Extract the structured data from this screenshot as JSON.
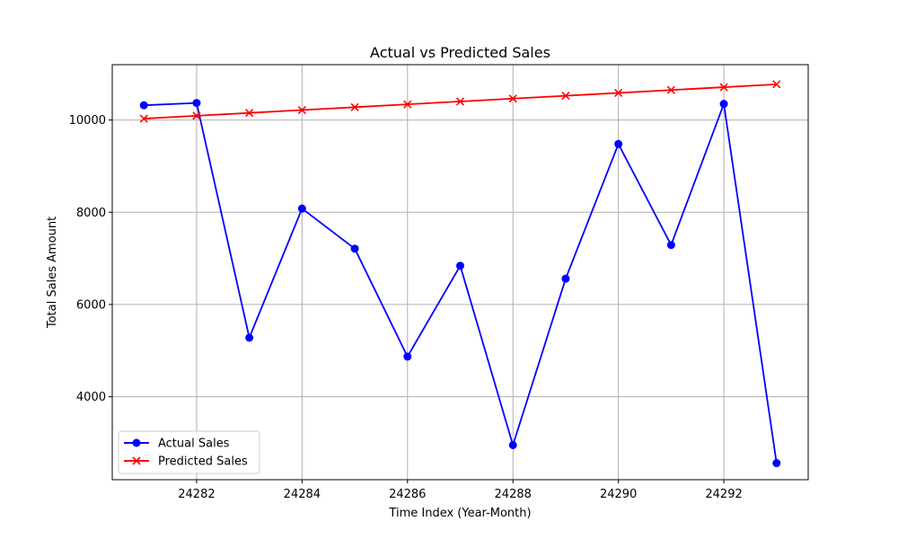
{
  "chart_data": {
    "type": "line",
    "title": "Actual vs Predicted Sales",
    "xlabel": "Time Index (Year-Month)",
    "ylabel": "Total Sales Amount",
    "x": [
      24281,
      24282,
      24283,
      24284,
      24285,
      24286,
      24287,
      24288,
      24289,
      24290,
      24291,
      24292,
      24293
    ],
    "xlim": [
      24280.4,
      24293.6
    ],
    "ylim": [
      2200,
      11200
    ],
    "xticks": [
      24282,
      24284,
      24286,
      24288,
      24290,
      24292
    ],
    "xtick_labels": [
      "24282",
      "24284",
      "24286",
      "24288",
      "24290",
      "24292"
    ],
    "yticks": [
      4000,
      6000,
      8000,
      10000
    ],
    "ytick_labels": [
      "4000",
      "6000",
      "8000",
      "10000"
    ],
    "grid": true,
    "legend_position": "lower-left",
    "series": [
      {
        "name": "Actual Sales",
        "color": "#0000ff",
        "marker": "circle",
        "values": [
          10320,
          10370,
          5280,
          8080,
          7210,
          4870,
          6840,
          2950,
          6560,
          9480,
          7290,
          10350,
          2560
        ]
      },
      {
        "name": "Predicted Sales",
        "color": "#ff0000",
        "marker": "x",
        "values": [
          10030,
          10092,
          10154,
          10216,
          10278,
          10340,
          10402,
          10464,
          10526,
          10588,
          10650,
          10712,
          10774
        ]
      }
    ]
  }
}
